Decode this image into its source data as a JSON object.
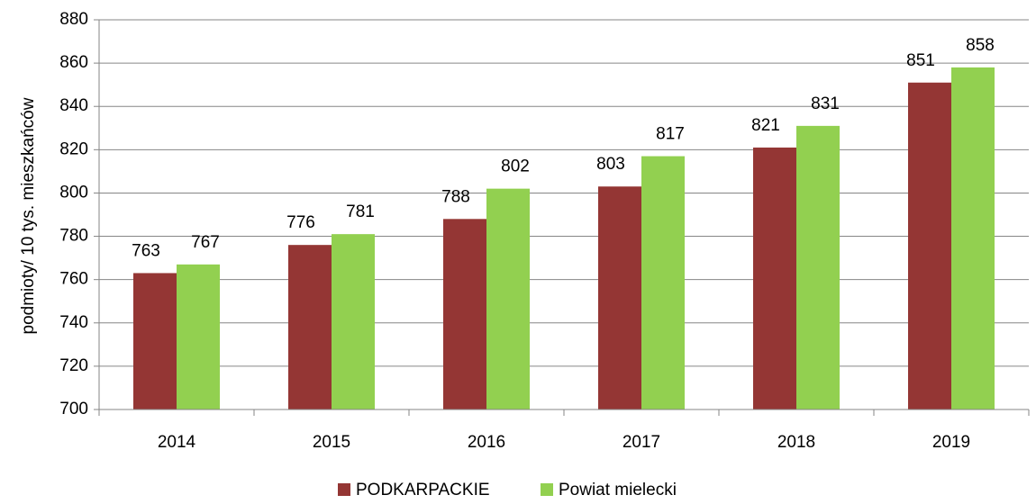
{
  "chart_data": {
    "type": "bar",
    "y_label": "podmioty/ 10 tys. mieszkańców",
    "categories": [
      "2014",
      "2015",
      "2016",
      "2017",
      "2018",
      "2019"
    ],
    "series": [
      {
        "name": "PODKARPACKIE",
        "color": "#943634",
        "values": [
          763,
          776,
          788,
          803,
          821,
          851
        ]
      },
      {
        "name": "Powiat mielecki",
        "color": "#92d050",
        "values": [
          767,
          781,
          802,
          817,
          831,
          858
        ]
      }
    ],
    "ylim": [
      700,
      880
    ],
    "yticks": [
      700,
      720,
      740,
      760,
      780,
      800,
      820,
      840,
      860,
      880
    ],
    "grid": true,
    "legend": "bottom"
  }
}
